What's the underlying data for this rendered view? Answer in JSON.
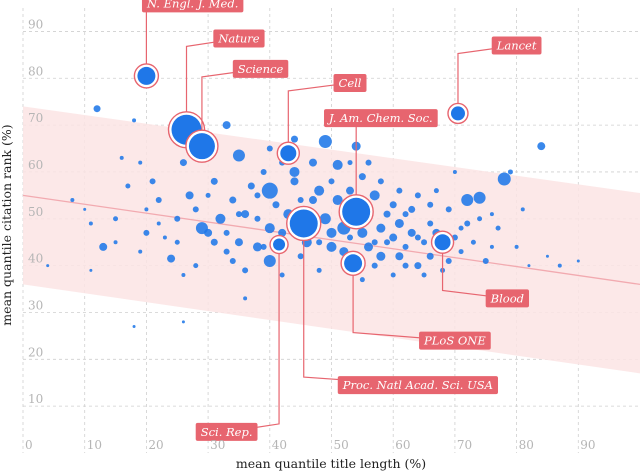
{
  "chart_data": {
    "type": "scatter",
    "title": "",
    "xlabel": "mean quantile title length (%)",
    "ylabel": "mean quantile citation rank (%)",
    "xlim": [
      0,
      100
    ],
    "ylim": [
      0,
      95
    ],
    "x_ticks": [
      0,
      10,
      20,
      30,
      40,
      50,
      60,
      70,
      80,
      90
    ],
    "y_ticks": [
      10,
      20,
      30,
      40,
      50,
      60,
      70,
      80,
      90
    ],
    "grid": true,
    "colors": {
      "point": "#1f77e8",
      "highlight": "#e7656f",
      "label_bg": "#e7656f",
      "band": "#fbe4e4",
      "trend": "#f2aab0",
      "grid": "#cfcfcf"
    },
    "trend": {
      "x": [
        0,
        100
      ],
      "y": [
        55,
        36
      ]
    },
    "band": {
      "x": [
        0,
        100
      ],
      "upper": [
        74,
        55.5
      ],
      "lower": [
        36,
        17
      ]
    },
    "highlighted": [
      {
        "label": "N. Engl. J. Med.",
        "x": 20,
        "y": 80.5,
        "size": 9,
        "label_x": 27.5,
        "label_y": 96
      },
      {
        "label": "Nature",
        "x": 26.5,
        "y": 69,
        "size": 15,
        "label_x": 35,
        "label_y": 88.5
      },
      {
        "label": "Science",
        "x": 29,
        "y": 65.5,
        "size": 13,
        "label_x": 38.5,
        "label_y": 82
      },
      {
        "label": "Cell",
        "x": 43,
        "y": 64,
        "size": 8,
        "label_x": 53,
        "label_y": 79
      },
      {
        "label": "J. Am. Chem. Soc.",
        "x": 54,
        "y": 51.5,
        "size": 14,
        "label_x": 58,
        "label_y": 71.5
      },
      {
        "label": "Lancet",
        "x": 70.5,
        "y": 72.5,
        "size": 7,
        "label_x": 80,
        "label_y": 87
      },
      {
        "label": "Blood",
        "x": 68,
        "y": 45,
        "size": 8,
        "label_x": 78.5,
        "label_y": 33
      },
      {
        "label": "PLoS ONE",
        "x": 53.5,
        "y": 40.5,
        "size": 9,
        "label_x": 70,
        "label_y": 24
      },
      {
        "label": "Proc. Natl Acad. Sci. USA",
        "x": 45.5,
        "y": 49,
        "size": 14,
        "label_x": 64,
        "label_y": 14.5
      },
      {
        "label": "Sci. Rep.",
        "x": 41.5,
        "y": 44.5,
        "size": 6,
        "label_x": 33,
        "label_y": 4.5
      }
    ],
    "points": [
      [
        4,
        40,
        1.5
      ],
      [
        8,
        54,
        2
      ],
      [
        10,
        52,
        1.5
      ],
      [
        11,
        49,
        2
      ],
      [
        12,
        73.5,
        3.5
      ],
      [
        13,
        44,
        4
      ],
      [
        15,
        50,
        2.5
      ],
      [
        16,
        63,
        2
      ],
      [
        17,
        57,
        2.5
      ],
      [
        18,
        71,
        2
      ],
      [
        19,
        43,
        2
      ],
      [
        20,
        47,
        3
      ],
      [
        21,
        58,
        3
      ],
      [
        22,
        54,
        3
      ],
      [
        23,
        46,
        2
      ],
      [
        24,
        41.5,
        4
      ],
      [
        25,
        50,
        3
      ],
      [
        26,
        62,
        3.5
      ],
      [
        27,
        55,
        4
      ],
      [
        28,
        52,
        3
      ],
      [
        29,
        48,
        6
      ],
      [
        30,
        47,
        4
      ],
      [
        31,
        45,
        3.5
      ],
      [
        31,
        58,
        3.5
      ],
      [
        32,
        50,
        5
      ],
      [
        33,
        70,
        4
      ],
      [
        34,
        41,
        3
      ],
      [
        35,
        63.5,
        6
      ],
      [
        35,
        45,
        4
      ],
      [
        36,
        51,
        4
      ],
      [
        37,
        57,
        3.5
      ],
      [
        38,
        55,
        3
      ],
      [
        38,
        44,
        4.5
      ],
      [
        39,
        60,
        3
      ],
      [
        40,
        56,
        8
      ],
      [
        40,
        48,
        5
      ],
      [
        40,
        41,
        6
      ],
      [
        41,
        53,
        3.5
      ],
      [
        42,
        47,
        4
      ],
      [
        43,
        51,
        5
      ],
      [
        44,
        67,
        3.5
      ],
      [
        44,
        58,
        4
      ],
      [
        45,
        54,
        3
      ],
      [
        46,
        45,
        5
      ],
      [
        47,
        54,
        4
      ],
      [
        48,
        56,
        5
      ],
      [
        49,
        66.5,
        6.5
      ],
      [
        49,
        50,
        5.5
      ],
      [
        50,
        47,
        5
      ],
      [
        50,
        44,
        5
      ],
      [
        51,
        54,
        5
      ],
      [
        51,
        61.5,
        5
      ],
      [
        52,
        43,
        4.5
      ],
      [
        52,
        48,
        6.5
      ],
      [
        53,
        56,
        4
      ],
      [
        54,
        65.5,
        4.5
      ],
      [
        55,
        59,
        3.5
      ],
      [
        55,
        47,
        5
      ],
      [
        56,
        44,
        4.5
      ],
      [
        56,
        52,
        3
      ],
      [
        57,
        55,
        5
      ],
      [
        58,
        48,
        4.5
      ],
      [
        58,
        42,
        4.5
      ],
      [
        59,
        51,
        3.5
      ],
      [
        60,
        46,
        4
      ],
      [
        60,
        53,
        3.5
      ],
      [
        61,
        49,
        4.5
      ],
      [
        61,
        42,
        4
      ],
      [
        62,
        44,
        3
      ],
      [
        63,
        52,
        3.5
      ],
      [
        63,
        47,
        4
      ],
      [
        64,
        40,
        3.5
      ],
      [
        65,
        45,
        3
      ],
      [
        66,
        49,
        3
      ],
      [
        66,
        42,
        3.5
      ],
      [
        67,
        47,
        4
      ],
      [
        69,
        52,
        3
      ],
      [
        69,
        41,
        3
      ],
      [
        70,
        46,
        3
      ],
      [
        72,
        54,
        6
      ],
      [
        72,
        49,
        3
      ],
      [
        74,
        54.5,
        6
      ],
      [
        75,
        41,
        3
      ],
      [
        76,
        44,
        2
      ],
      [
        77,
        48,
        2.5
      ],
      [
        78,
        58.5,
        6.5
      ],
      [
        79,
        60,
        2.5
      ],
      [
        80,
        44,
        2
      ],
      [
        82,
        40,
        1.5
      ],
      [
        84,
        65.5,
        4
      ],
      [
        85,
        42,
        1.5
      ],
      [
        87,
        40,
        2
      ],
      [
        90,
        41,
        1.5
      ],
      [
        26,
        28,
        1.5
      ],
      [
        18,
        27,
        1.5
      ],
      [
        36,
        33,
        2
      ],
      [
        44,
        60,
        5
      ],
      [
        34,
        54,
        3.5
      ],
      [
        47,
        62,
        4
      ],
      [
        53,
        46,
        3
      ],
      [
        45,
        42,
        3
      ],
      [
        39,
        44,
        3
      ],
      [
        61,
        56,
        3
      ],
      [
        57,
        40,
        3
      ],
      [
        64,
        55,
        3
      ],
      [
        68,
        39,
        2.5
      ],
      [
        71,
        43,
        2.5
      ],
      [
        33,
        43,
        3
      ],
      [
        28,
        40,
        2.5
      ],
      [
        22,
        49,
        2
      ],
      [
        42,
        62,
        3
      ],
      [
        50,
        58,
        3
      ],
      [
        56,
        62,
        3
      ],
      [
        59,
        45,
        3
      ],
      [
        62,
        51,
        3
      ],
      [
        66,
        53,
        3
      ],
      [
        73,
        45,
        2.5
      ],
      [
        55,
        37,
        2.5
      ],
      [
        48,
        39,
        2.5
      ],
      [
        42,
        38,
        2.5
      ],
      [
        30,
        55,
        2.5
      ],
      [
        25,
        45,
        2.5
      ],
      [
        15,
        45,
        2
      ],
      [
        19,
        62,
        2
      ],
      [
        70,
        60,
        2
      ],
      [
        76,
        51,
        2
      ],
      [
        81,
        52,
        2
      ],
      [
        60,
        38,
        2.5
      ],
      [
        38,
        50,
        3
      ],
      [
        46,
        51,
        3.5
      ],
      [
        52,
        52,
        3.5
      ],
      [
        58,
        58,
        3
      ],
      [
        64,
        46,
        3
      ],
      [
        29,
        63,
        3
      ],
      [
        33,
        47,
        3
      ],
      [
        36,
        39,
        3
      ],
      [
        40,
        65,
        3
      ],
      [
        20,
        52,
        2
      ],
      [
        11,
        39,
        1.5
      ],
      [
        26,
        38,
        2
      ],
      [
        65,
        38,
        2.5
      ],
      [
        67,
        56,
        2.5
      ],
      [
        71,
        48,
        2.5
      ],
      [
        74,
        50,
        2.5
      ],
      [
        53,
        62,
        2.5
      ],
      [
        44,
        47,
        3
      ],
      [
        48,
        45,
        3
      ],
      [
        57,
        45,
        3
      ],
      [
        62,
        40,
        3
      ],
      [
        35,
        51,
        3
      ]
    ]
  }
}
